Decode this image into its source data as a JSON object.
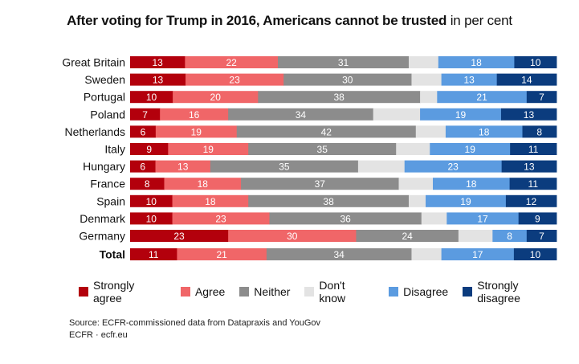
{
  "title": {
    "bold": "After voting for Trump in 2016, Americans cannot be trusted",
    "light": "in per cent"
  },
  "colors": {
    "strongly_agree": "#b3000c",
    "agree": "#f06668",
    "neither": "#8c8c8c",
    "dont_know": "#e3e3e3",
    "disagree": "#5b9be0",
    "strongly_disagree": "#0b3c7e"
  },
  "chart_data": {
    "type": "bar",
    "orientation": "horizontal",
    "stacked": true,
    "normalized": true,
    "title": "After voting for Trump in 2016, Americans cannot be trusted",
    "subtitle": "in per cent",
    "categories": [
      "Great Britain",
      "Sweden",
      "Portugal",
      "Poland",
      "Netherlands",
      "Italy",
      "Hungary",
      "France",
      "Spain",
      "Denmark",
      "Germany",
      "Total"
    ],
    "series": [
      {
        "name": "Strongly agree",
        "color": "#b3000c",
        "values": [
          13,
          13,
          10,
          7,
          6,
          9,
          6,
          8,
          10,
          10,
          23,
          11
        ]
      },
      {
        "name": "Agree",
        "color": "#f06668",
        "values": [
          22,
          23,
          20,
          16,
          19,
          19,
          13,
          18,
          18,
          23,
          30,
          21
        ]
      },
      {
        "name": "Neither",
        "color": "#8c8c8c",
        "values": [
          31,
          30,
          38,
          34,
          42,
          35,
          35,
          37,
          38,
          36,
          24,
          34
        ]
      },
      {
        "name": "Don't know",
        "color": "#e3e3e3",
        "values": [
          7,
          7,
          4,
          11,
          7,
          8,
          11,
          8,
          4,
          6,
          8,
          7
        ]
      },
      {
        "name": "Disagree",
        "color": "#5b9be0",
        "values": [
          18,
          13,
          21,
          19,
          18,
          19,
          23,
          18,
          19,
          17,
          8,
          17
        ]
      },
      {
        "name": "Strongly disagree",
        "color": "#0b3c7e",
        "values": [
          10,
          14,
          7,
          13,
          8,
          11,
          13,
          11,
          12,
          9,
          7,
          10
        ]
      }
    ],
    "label_hidden_series": [
      "Don't know"
    ],
    "bold_categories": [
      "Total"
    ],
    "legend_position": "bottom",
    "grid": false
  },
  "source": {
    "line1": "Source: ECFR-commissioned data from Datapraxis and YouGov",
    "line2": "ECFR · ecfr.eu"
  }
}
